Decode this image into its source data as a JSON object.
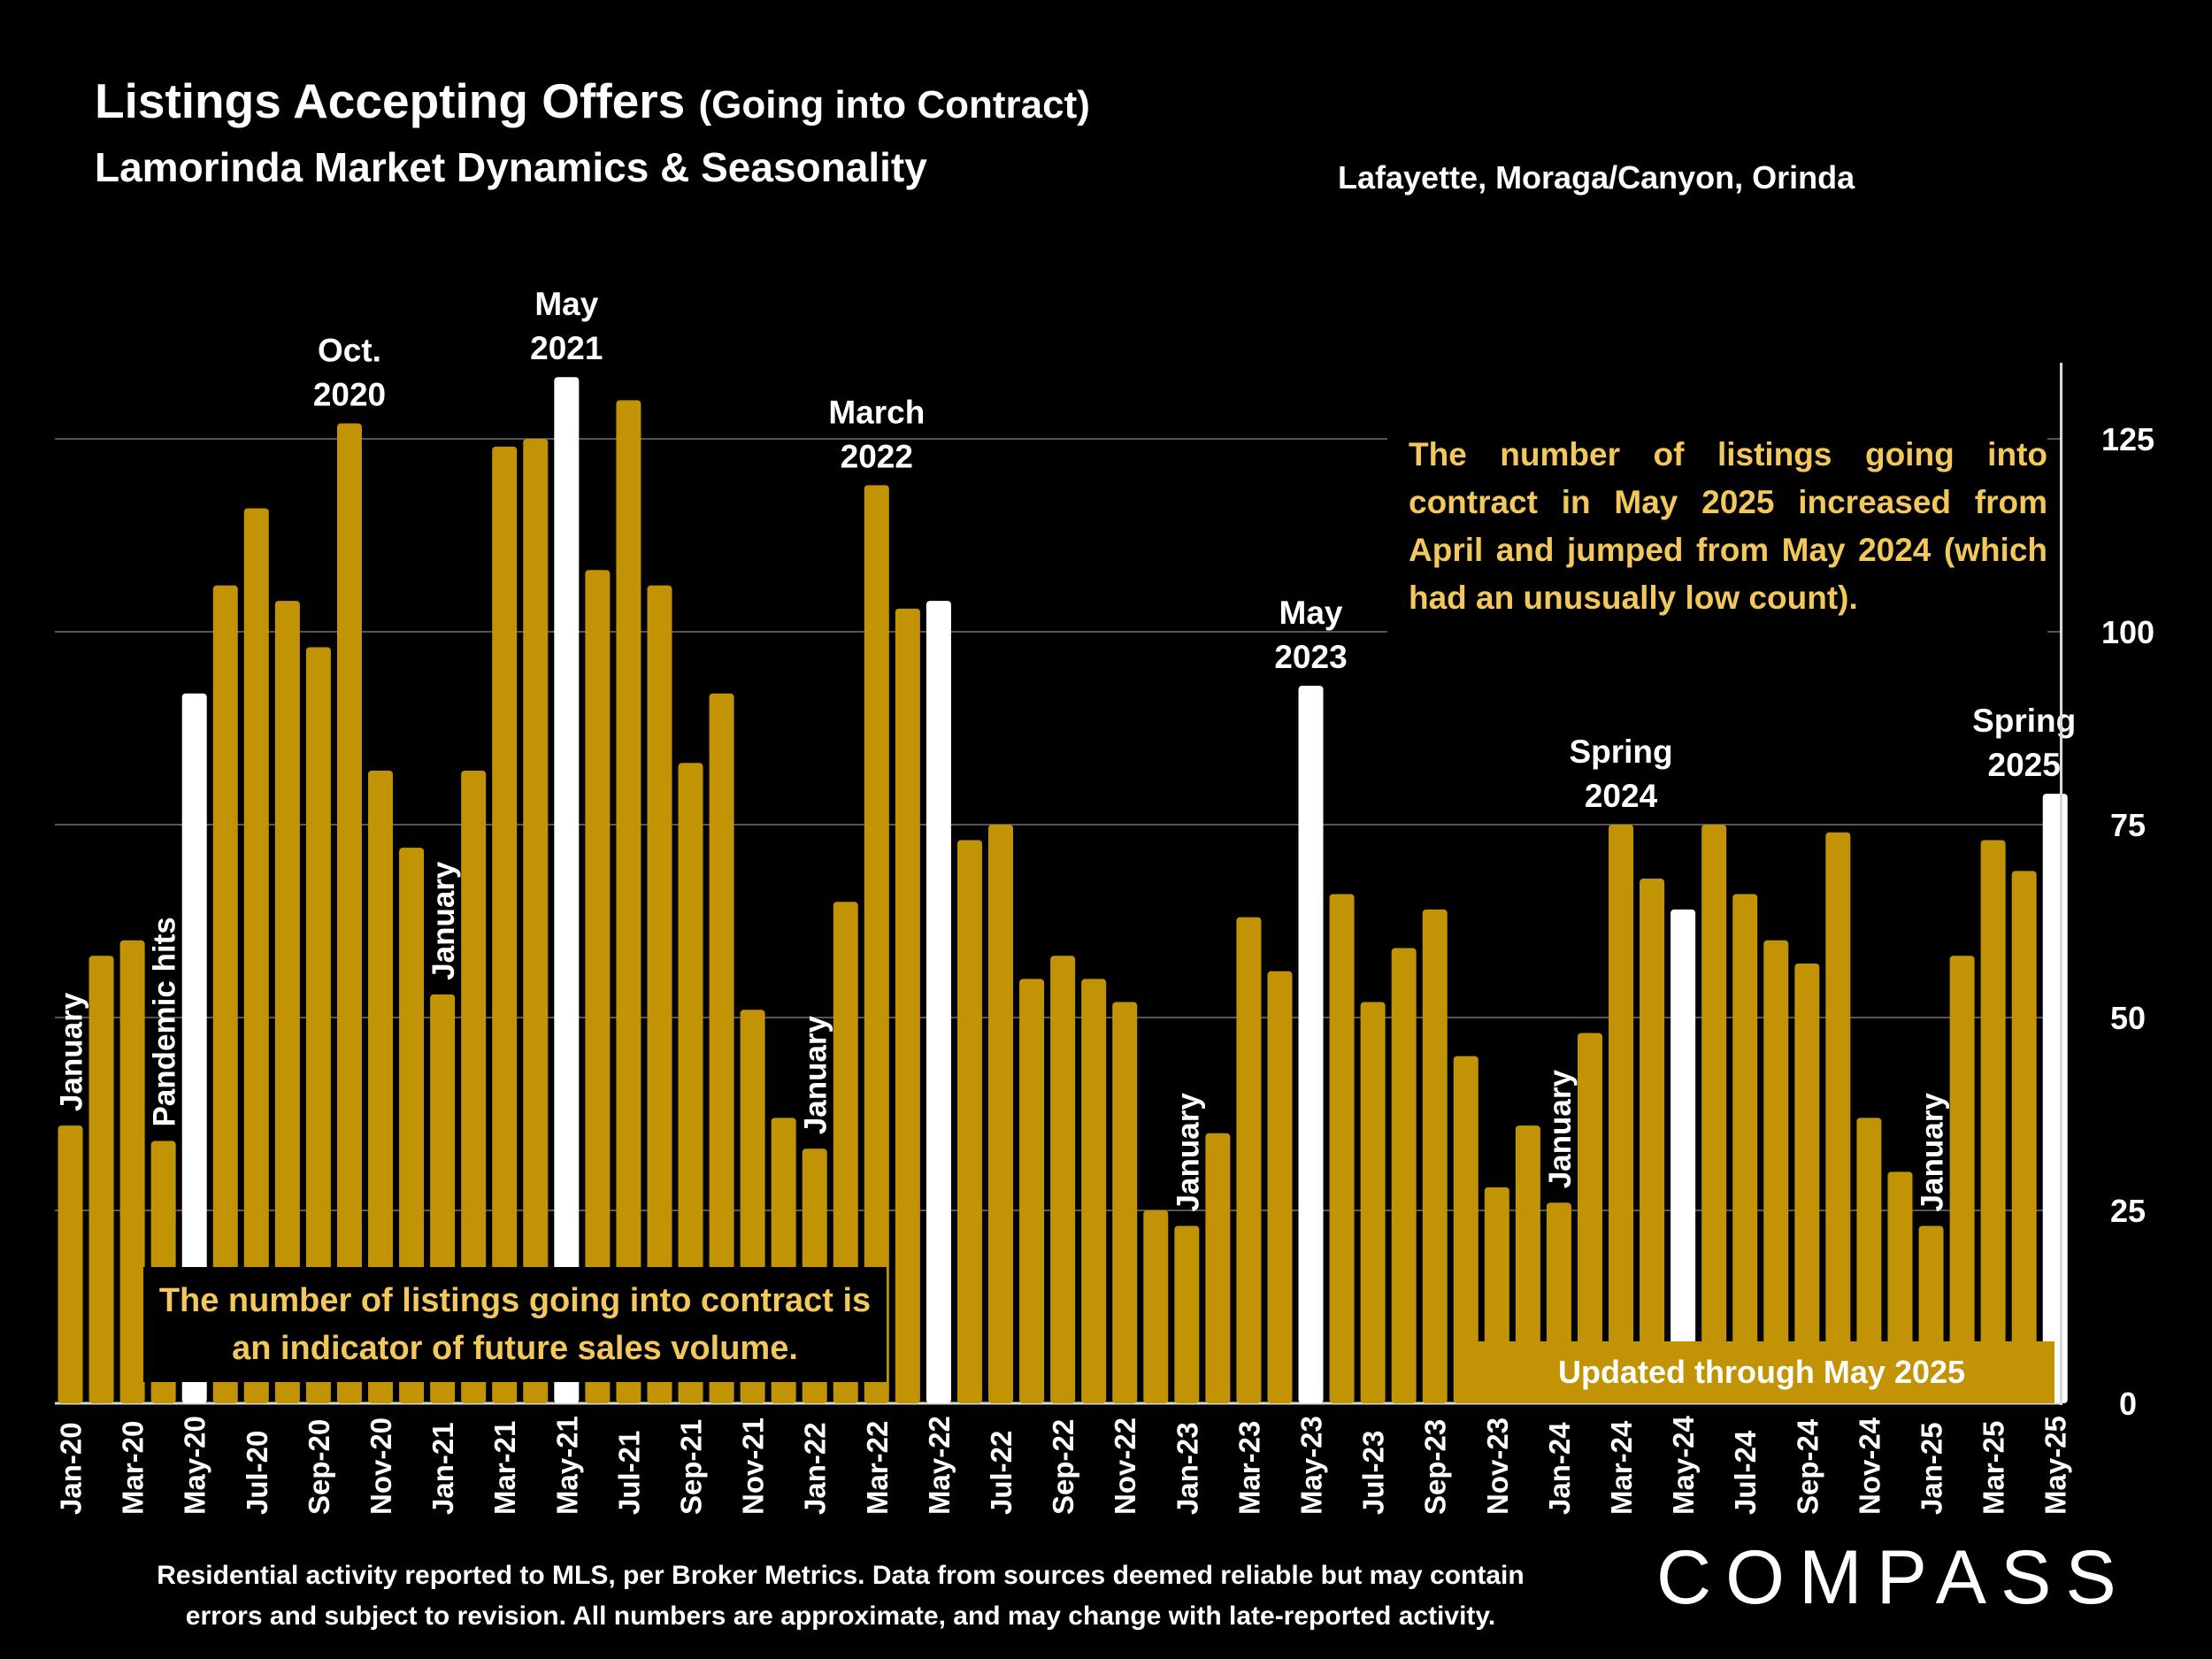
{
  "header": {
    "title": "Listings Accepting Offers",
    "title_paren": "(Going into Contract)",
    "subtitle": "Lamorinda Market Dynamics & Seasonality",
    "region": "Lafayette, Moraga/Canyon, Orinda"
  },
  "callouts": {
    "right": "The number of listings going into contract in May 2025 increased from April and jumped from May 2024 (which had an unusually low count).",
    "left": "The number of listings going into contract is an indicator of future sales volume.",
    "updated": "Updated through May 2025"
  },
  "footer": {
    "note": "Residential activity reported to MLS, per Broker Metrics. Data from sources deemed reliable but may contain errors and subject to revision. All numbers are approximate, and may change with late-reported activity.",
    "logo": "COMPASS"
  },
  "chart_data": {
    "type": "bar",
    "ylim": [
      0,
      135
    ],
    "y_ticks": [
      0,
      25,
      50,
      75,
      100,
      125
    ],
    "y_axis_side": "right",
    "grid": true,
    "colors": {
      "bar": "#c29405",
      "highlight": "#ffffff",
      "grid": "#555555",
      "text": "#ffffff"
    },
    "categories": [
      "Jan-20",
      "Feb-20",
      "Mar-20",
      "Apr-20",
      "May-20",
      "Jun-20",
      "Jul-20",
      "Aug-20",
      "Sep-20",
      "Oct-20",
      "Nov-20",
      "Dec-20",
      "Jan-21",
      "Feb-21",
      "Mar-21",
      "Apr-21",
      "May-21",
      "Jun-21",
      "Jul-21",
      "Aug-21",
      "Sep-21",
      "Oct-21",
      "Nov-21",
      "Dec-21",
      "Jan-22",
      "Feb-22",
      "Mar-22",
      "Apr-22",
      "May-22",
      "Jun-22",
      "Jul-22",
      "Aug-22",
      "Sep-22",
      "Oct-22",
      "Nov-22",
      "Dec-22",
      "Jan-23",
      "Feb-23",
      "Mar-23",
      "Apr-23",
      "May-23",
      "Jun-23",
      "Jul-23",
      "Aug-23",
      "Sep-23",
      "Oct-23",
      "Nov-23",
      "Dec-23",
      "Jan-24",
      "Feb-24",
      "Mar-24",
      "Apr-24",
      "May-24",
      "Jun-24",
      "Jul-24",
      "Aug-24",
      "Sep-24",
      "Oct-24",
      "Nov-24",
      "Dec-24",
      "Jan-25",
      "Feb-25",
      "Mar-25",
      "Apr-25",
      "May-25"
    ],
    "x_tick_labels": [
      "Jan-20",
      "",
      "Mar-20",
      "",
      "May-20",
      "",
      "Jul-20",
      "",
      "Sep-20",
      "",
      "Nov-20",
      "",
      "Jan-21",
      "",
      "Mar-21",
      "",
      "May-21",
      "",
      "Jul-21",
      "",
      "Sep-21",
      "",
      "Nov-21",
      "",
      "Jan-22",
      "",
      "Mar-22",
      "",
      "May-22",
      "",
      "Jul-22",
      "",
      "Sep-22",
      "",
      "Nov-22",
      "",
      "Jan-23",
      "",
      "Mar-23",
      "",
      "May-23",
      "",
      "Jul-23",
      "",
      "Sep-23",
      "",
      "Nov-23",
      "",
      "Jan-24",
      "",
      "Mar-24",
      "",
      "May-24",
      "",
      "Jul-24",
      "",
      "Sep-24",
      "",
      "Nov-24",
      "",
      "Jan-25",
      "",
      "Mar-25",
      "",
      "May-25"
    ],
    "values": [
      36,
      58,
      60,
      34,
      92,
      106,
      116,
      104,
      98,
      127,
      82,
      72,
      53,
      82,
      124,
      125,
      133,
      108,
      130,
      106,
      83,
      92,
      51,
      37,
      33,
      65,
      119,
      103,
      104,
      73,
      75,
      55,
      58,
      55,
      52,
      25,
      23,
      35,
      63,
      56,
      93,
      66,
      52,
      59,
      64,
      45,
      28,
      36,
      26,
      48,
      75,
      68,
      64,
      75,
      66,
      60,
      57,
      74,
      37,
      30,
      23,
      58,
      73,
      69,
      79
    ],
    "highlight": [
      "May-20",
      "May-21",
      "May-22",
      "May-23",
      "May-24",
      "May-25"
    ],
    "annotations": [
      {
        "text": "January",
        "at": "Jan-20",
        "value": 36,
        "orient": "vertical"
      },
      {
        "text": "Pandemic  hits",
        "at": "Apr-20",
        "value": 34,
        "orient": "vertical"
      },
      {
        "text": "Oct.\n2020",
        "at": "Oct-20",
        "value": 127,
        "orient": "horizontal"
      },
      {
        "text": "January",
        "at": "Jan-21",
        "value": 53,
        "orient": "vertical"
      },
      {
        "text": "May\n2021",
        "at": "May-21",
        "value": 133,
        "orient": "horizontal"
      },
      {
        "text": "January",
        "at": "Jan-22",
        "value": 33,
        "orient": "vertical"
      },
      {
        "text": "March\n2022",
        "at": "Mar-22",
        "value": 119,
        "orient": "horizontal"
      },
      {
        "text": "January",
        "at": "Jan-23",
        "value": 23,
        "orient": "vertical"
      },
      {
        "text": "May\n2023",
        "at": "May-23",
        "value": 93,
        "orient": "horizontal"
      },
      {
        "text": "January",
        "at": "Jan-24",
        "value": 26,
        "orient": "vertical"
      },
      {
        "text": "Spring\n2024",
        "at": "Mar-24",
        "value": 75,
        "orient": "horizontal"
      },
      {
        "text": "January",
        "at": "Jan-25",
        "value": 23,
        "orient": "vertical"
      },
      {
        "text": "Spring\n2025",
        "at": "Apr-25",
        "value": 79,
        "orient": "horizontal"
      }
    ]
  }
}
